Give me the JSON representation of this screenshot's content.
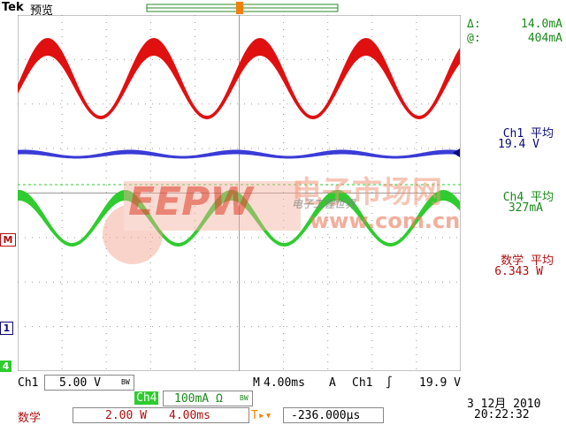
{
  "header": {
    "brand": "Tek",
    "mode": "预览"
  },
  "cursor_readout": {
    "delta_label": "Δ:",
    "delta_value": "14.0mA",
    "at_label": "@:",
    "at_value": "404mA"
  },
  "measurements": [
    {
      "title": "Ch1 平均",
      "value": "19.4 V",
      "color": "#0a0a7a"
    },
    {
      "title": "Ch4 平均",
      "value": "327mA",
      "color": "#1a8a1a"
    },
    {
      "title": "数学 平均",
      "value": "6.343 W",
      "color": "#b01010"
    }
  ],
  "markers": {
    "trigger": "T",
    "math": "M",
    "ch1": "1",
    "ch4": "4"
  },
  "bottom_bar": {
    "ch1_label": "Ch1",
    "ch1_scale": "5.00 V",
    "ch1_bw": "BW",
    "ch4_label": "Ch4",
    "ch4_scale": "100mA Ω",
    "ch4_bw": "BW",
    "timebase_label": "M",
    "timebase_value": "4.00ms",
    "acq_mode": "A",
    "trigger_source": "Ch1",
    "trigger_slope": "∫",
    "trigger_level": "19.9 V",
    "math_label": "数学",
    "math_scale": "2.00 W",
    "math_time": "4.00ms",
    "trigger_pos_label": "T▸▾",
    "trigger_offset": "-236.000μs",
    "date": "3 12月 2010",
    "time": "20:22:32"
  },
  "watermark": {
    "logo_text": "EEPW",
    "site_cn": "电子市场网",
    "site_en": "www.com.cn",
    "slogan": "电子工程世界"
  },
  "colors": {
    "ch1": "#3b3bd6",
    "ch4": "#2ecc2e",
    "math": "#e01010",
    "grid": "#9a9a9a",
    "trigger_marker": "#f08000"
  }
}
